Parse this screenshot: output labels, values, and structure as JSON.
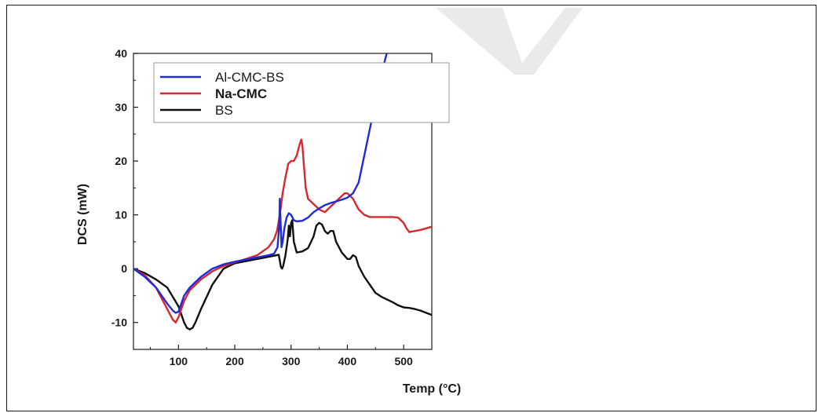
{
  "chart_data": {
    "type": "line",
    "xlabel": "Temp (°C)",
    "ylabel": "DCS (mW)",
    "xlim": [
      20,
      550
    ],
    "ylim": [
      -15,
      40
    ],
    "x_ticks": [
      100,
      200,
      300,
      400,
      500
    ],
    "y_ticks": [
      -10,
      0,
      10,
      20,
      30,
      40
    ],
    "legend_position": "top-left",
    "grid": false,
    "series": [
      {
        "name": "Al-CMC-BS",
        "color": "#1f2bd6",
        "x": [
          20,
          40,
          60,
          80,
          90,
          95,
          100,
          110,
          120,
          140,
          160,
          180,
          200,
          220,
          240,
          260,
          270,
          276,
          279,
          280,
          281,
          283,
          285,
          288,
          292,
          296,
          300,
          305,
          310,
          320,
          330,
          340,
          350,
          360,
          370,
          380,
          390,
          400,
          410,
          420,
          430,
          440,
          450,
          460,
          470,
          475
        ],
        "y": [
          0,
          -1.5,
          -3.5,
          -6.5,
          -7.8,
          -8.2,
          -8,
          -5,
          -3.5,
          -1.5,
          0,
          0.8,
          1.3,
          1.7,
          2.1,
          2.5,
          2.8,
          4,
          8,
          13,
          10,
          4,
          5,
          7.5,
          9.5,
          10.3,
          10,
          9,
          8.8,
          8.9,
          9.5,
          10.5,
          11.2,
          11.8,
          12.2,
          12.5,
          12.8,
          13.2,
          14,
          16,
          21,
          26,
          31,
          36,
          40,
          42
        ]
      },
      {
        "name": "Na-CMC",
        "color": "#d6282d",
        "x": [
          20,
          40,
          60,
          80,
          90,
          95,
          100,
          110,
          120,
          140,
          160,
          180,
          200,
          220,
          240,
          260,
          270,
          275,
          280,
          285,
          290,
          295,
          300,
          305,
          310,
          315,
          318,
          320,
          323,
          326,
          330,
          340,
          350,
          360,
          370,
          380,
          390,
          395,
          400,
          410,
          420,
          430,
          440,
          450,
          460,
          470,
          480,
          490,
          500,
          505,
          510,
          520,
          530,
          540,
          550
        ],
        "y": [
          0,
          -1.2,
          -3.5,
          -7.5,
          -9.5,
          -10,
          -9,
          -6,
          -4,
          -2,
          -0.5,
          0.5,
          1.2,
          1.8,
          2.5,
          4,
          5.5,
          7,
          10,
          14,
          17,
          19.5,
          20,
          20,
          21,
          23,
          24,
          23,
          19,
          15,
          13,
          12,
          11,
          10.5,
          11.5,
          12.5,
          13.5,
          14,
          14,
          13,
          11,
          10,
          9.6,
          9.6,
          9.6,
          9.6,
          9.6,
          9.5,
          8.5,
          7.5,
          6.8,
          7,
          7.2,
          7.5,
          7.8
        ]
      },
      {
        "name": "BS",
        "color": "#111111",
        "x": [
          20,
          40,
          60,
          80,
          100,
          110,
          115,
          120,
          125,
          130,
          140,
          160,
          180,
          200,
          220,
          240,
          260,
          270,
          278,
          280,
          282,
          284,
          286,
          290,
          294,
          296,
          298,
          300,
          302,
          305,
          310,
          320,
          330,
          340,
          345,
          350,
          355,
          360,
          365,
          370,
          375,
          380,
          390,
          400,
          405,
          410,
          415,
          420,
          430,
          440,
          450,
          460,
          470,
          480,
          490,
          500,
          510,
          520,
          530,
          540,
          550
        ],
        "y": [
          0,
          -0.8,
          -2,
          -3.5,
          -7,
          -10,
          -11,
          -11.3,
          -11,
          -10,
          -7.5,
          -3,
          0,
          1,
          1.4,
          1.8,
          2.2,
          2.4,
          2.6,
          1.5,
          0.3,
          0,
          0.5,
          2.5,
          5.5,
          8,
          6,
          8.5,
          9,
          5,
          3,
          3.2,
          3.8,
          6,
          8,
          8.5,
          8.2,
          7,
          6.5,
          7,
          7,
          5,
          3,
          1.8,
          1.8,
          2.5,
          2.2,
          0.5,
          -1.5,
          -3,
          -4.5,
          -5.2,
          -5.7,
          -6.2,
          -6.8,
          -7.2,
          -7.3,
          -7.5,
          -7.8,
          -8.2,
          -8.6
        ]
      }
    ]
  }
}
